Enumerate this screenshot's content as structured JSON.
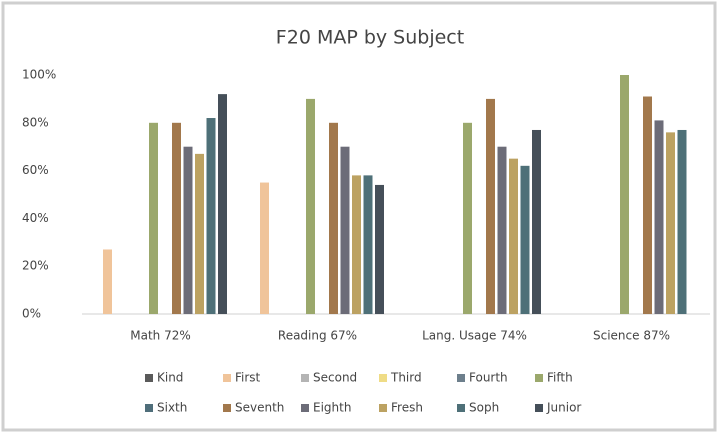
{
  "chart_data": {
    "type": "bar",
    "title": "F20 MAP by Subject",
    "categories": [
      "Math 72%",
      "Reading 67%",
      "Lang. Usage 74%",
      "Science 87%"
    ],
    "series": [
      {
        "name": "Kind",
        "color": "#5a5a5a",
        "values": [
          null,
          null,
          null,
          null
        ]
      },
      {
        "name": "First",
        "color": "#f0c49a",
        "values": [
          27,
          55,
          null,
          null
        ]
      },
      {
        "name": "Second",
        "color": "#b4b4b4",
        "values": [
          null,
          null,
          null,
          null
        ]
      },
      {
        "name": "Third",
        "color": "#efdc86",
        "values": [
          null,
          null,
          null,
          null
        ]
      },
      {
        "name": "Fourth",
        "color": "#6d7f8c",
        "values": [
          null,
          null,
          null,
          null
        ]
      },
      {
        "name": "Fifth",
        "color": "#9ba86c",
        "values": [
          80,
          90,
          80,
          100
        ]
      },
      {
        "name": "Sixth",
        "color": "#4f6e7a",
        "values": [
          null,
          null,
          null,
          null
        ]
      },
      {
        "name": "Seventh",
        "color": "#a2784c",
        "values": [
          80,
          80,
          90,
          91
        ]
      },
      {
        "name": "Eighth",
        "color": "#6c6c78",
        "values": [
          70,
          70,
          70,
          81
        ]
      },
      {
        "name": "Fresh",
        "color": "#bca262",
        "values": [
          67,
          58,
          65,
          76
        ]
      },
      {
        "name": "Soph",
        "color": "#4e7078",
        "values": [
          82,
          58,
          62,
          77
        ]
      },
      {
        "name": "Junior",
        "color": "#454f59",
        "values": [
          92,
          54,
          77,
          null
        ]
      }
    ],
    "ylim": [
      0,
      100
    ],
    "yticks": [
      {
        "value": 0,
        "label": "0%"
      },
      {
        "value": 20,
        "label": "20%"
      },
      {
        "value": 40,
        "label": "40%"
      },
      {
        "value": 60,
        "label": "60%"
      },
      {
        "value": 80,
        "label": "80%"
      },
      {
        "value": 100,
        "label": "100%"
      }
    ],
    "grid": false,
    "legend": "bottom"
  }
}
